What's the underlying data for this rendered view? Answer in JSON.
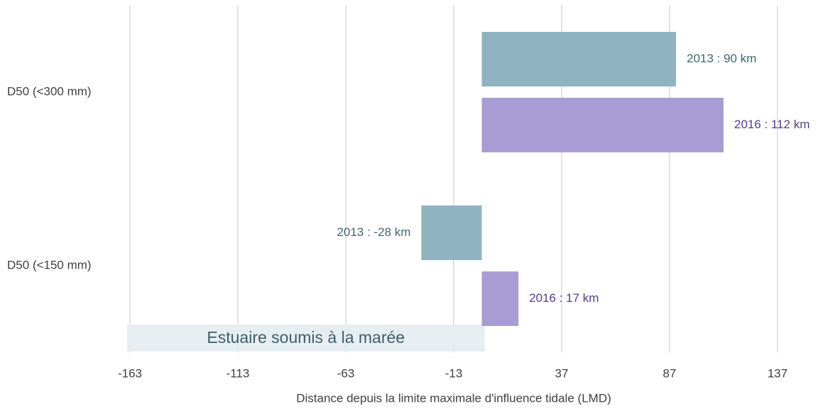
{
  "chart_data": {
    "type": "barh",
    "categories": [
      "D50 (<300 mm)",
      "D50 (<150 mm)"
    ],
    "series": [
      {
        "name": "2013",
        "color": "#8fb3c1",
        "values": [
          90,
          -28
        ],
        "value_labels": [
          "2013 : 90 km",
          "2013 : -28 km"
        ]
      },
      {
        "name": "2016",
        "color": "#a89cd4",
        "values": [
          112,
          17
        ],
        "value_labels": [
          "2016 : 112 km",
          "2016 : 17 km"
        ]
      }
    ],
    "xlim": [
      -163,
      137
    ],
    "xticks": [
      -163,
      -113,
      -63,
      -13,
      37,
      87,
      137
    ],
    "grid": true,
    "xlabel": "Distance depuis la limite maximale d'influence tidale (LMD)",
    "annotation": "Estuaire soumis à la marée"
  }
}
